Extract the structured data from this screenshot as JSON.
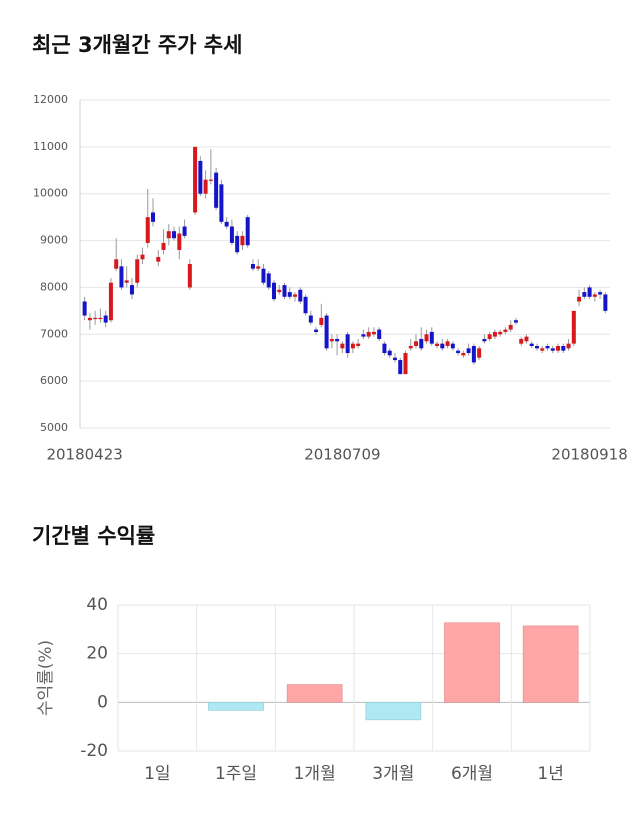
{
  "chart_data": [
    {
      "type": "candlestick",
      "title": "최근 3개월간 주가 추세",
      "categories": [
        "20180423",
        null,
        null,
        null,
        null,
        null,
        null,
        null,
        null,
        null,
        null,
        null,
        null,
        null,
        null,
        null,
        null,
        null,
        null,
        null,
        null,
        null,
        null,
        null,
        null,
        null,
        null,
        null,
        null,
        null,
        null,
        null,
        null,
        null,
        null,
        null,
        null,
        null,
        null,
        null,
        null,
        null,
        null,
        null,
        null,
        null,
        null,
        null,
        null,
        "20180709",
        null,
        null,
        null,
        null,
        null,
        null,
        null,
        null,
        null,
        null,
        null,
        null,
        null,
        null,
        null,
        null,
        null,
        null,
        null,
        null,
        null,
        null,
        null,
        null,
        null,
        null,
        null,
        null,
        null,
        null,
        null,
        null,
        null,
        null,
        null,
        null,
        null,
        null,
        null,
        null,
        null,
        null,
        null,
        null,
        null,
        null,
        "20180918",
        null,
        null,
        null
      ],
      "open": [
        7700,
        7300,
        7350,
        7350,
        7400,
        7300,
        8400,
        8450,
        8100,
        8050,
        8100,
        8600,
        8950,
        9600,
        8550,
        8800,
        9050,
        9200,
        8800,
        9300,
        8000,
        9600,
        10700,
        10000,
        10300,
        10450,
        10200,
        9400,
        9300,
        9100,
        8900,
        9500,
        8500,
        8400,
        8400,
        8300,
        8100,
        7900,
        8050,
        7900,
        7800,
        7950,
        7800,
        7400,
        7100,
        7200,
        7400,
        6850,
        6900,
        6700,
        7000,
        6700,
        6750,
        7000,
        6950,
        7000,
        7100,
        6800,
        6650,
        6500,
        6450,
        6150,
        6700,
        6750,
        6900,
        6850,
        7050,
        6750,
        6800,
        6750,
        6800,
        6650,
        6550,
        6700,
        6750,
        6500,
        6900,
        6900,
        6950,
        7000,
        7050,
        7100,
        7300,
        6800,
        6850,
        6800,
        6750,
        6650,
        6750,
        6700,
        6650,
        6750,
        6700,
        6800,
        7700,
        7900,
        8000,
        7800,
        7900,
        7850
      ],
      "high": [
        7800,
        7450,
        7500,
        7550,
        7500,
        8200,
        9050,
        8600,
        8450,
        8200,
        8700,
        8850,
        10100,
        9900,
        8800,
        9250,
        9350,
        9300,
        9300,
        9450,
        8600,
        11000,
        10800,
        10500,
        10950,
        10550,
        10300,
        9500,
        9450,
        9200,
        9200,
        9550,
        8600,
        8600,
        8500,
        8350,
        8150,
        8050,
        8100,
        8000,
        7900,
        8000,
        7850,
        7500,
        7150,
        7650,
        7450,
        7000,
        7000,
        6850,
        7050,
        6850,
        6900,
        7100,
        7150,
        7150,
        7150,
        6850,
        6700,
        6600,
        6500,
        6650,
        6900,
        7000,
        7150,
        7100,
        7150,
        6850,
        6900,
        6900,
        6850,
        6700,
        6650,
        6800,
        6800,
        6750,
        7000,
        7050,
        7100,
        7100,
        7150,
        7300,
        7350,
        6950,
        7000,
        6850,
        6800,
        6750,
        6800,
        6750,
        6800,
        6800,
        6900,
        7500,
        7950,
        8000,
        8050,
        7900,
        7950,
        7900
      ],
      "low": [
        7300,
        7100,
        7200,
        7250,
        7150,
        7250,
        8350,
        7950,
        8000,
        7750,
        8000,
        8500,
        8850,
        9300,
        8450,
        8700,
        8900,
        9000,
        8600,
        9050,
        7950,
        9550,
        9950,
        9900,
        10200,
        9650,
        9350,
        9250,
        8900,
        8700,
        8800,
        8850,
        8350,
        8350,
        8050,
        7950,
        7700,
        7850,
        7750,
        7750,
        7700,
        7650,
        7400,
        7200,
        7000,
        7150,
        6650,
        6700,
        6550,
        6600,
        6500,
        6600,
        6700,
        6900,
        6900,
        6950,
        6850,
        6550,
        6500,
        6400,
        6150,
        6150,
        6650,
        6700,
        6650,
        6800,
        6750,
        6700,
        6650,
        6700,
        6650,
        6550,
        6500,
        6550,
        6350,
        6450,
        6800,
        6850,
        6900,
        6950,
        7000,
        7050,
        7200,
        6750,
        6800,
        6700,
        6650,
        6600,
        6650,
        6600,
        6600,
        6600,
        6650,
        6750,
        7600,
        7750,
        7750,
        7700,
        7750,
        7450
      ],
      "close": [
        7400,
        7350,
        7350,
        7350,
        7250,
        8100,
        8600,
        8000,
        8150,
        7850,
        8600,
        8700,
        9500,
        9400,
        8650,
        8950,
        9200,
        9050,
        9150,
        9100,
        8500,
        11000,
        10000,
        10300,
        10300,
        9700,
        9400,
        9300,
        8950,
        8750,
        9100,
        8900,
        8400,
        8450,
        8100,
        8000,
        7750,
        7950,
        7800,
        7800,
        7850,
        7700,
        7450,
        7250,
        7050,
        7350,
        6700,
        6900,
        6850,
        6800,
        6600,
        6800,
        6800,
        6950,
        7050,
        7050,
        6900,
        6600,
        6550,
        6450,
        6150,
        6600,
        6750,
        6850,
        6700,
        7000,
        6800,
        6800,
        6700,
        6850,
        6700,
        6600,
        6600,
        6600,
        6400,
        6700,
        6850,
        7000,
        7050,
        7050,
        7100,
        7200,
        7250,
        6900,
        6950,
        6750,
        6700,
        6700,
        6700,
        6650,
        6750,
        6650,
        6800,
        7500,
        7800,
        7800,
        7800,
        7850,
        7850,
        7500
      ],
      "up_color": "#d7181c",
      "down_color": "#1414c8",
      "ylim": [
        5000,
        12000
      ],
      "yticks": [
        5000,
        6000,
        7000,
        8000,
        9000,
        10000,
        11000,
        12000
      ],
      "grid": true
    },
    {
      "type": "bar",
      "title": "기간별 수익률",
      "y_label": "수익률(%)",
      "categories": [
        "1일",
        "1주일",
        "1개월",
        "3개월",
        "6개월",
        "1년"
      ],
      "values": [
        0,
        -3.3,
        7.3,
        -7.2,
        32.7,
        31.4
      ],
      "positive_color": "#ffa6a6",
      "negative_color": "#aee8f2",
      "ylim": [
        -20,
        40
      ],
      "yticks": [
        -20,
        0,
        20,
        40
      ],
      "grid": true
    }
  ]
}
